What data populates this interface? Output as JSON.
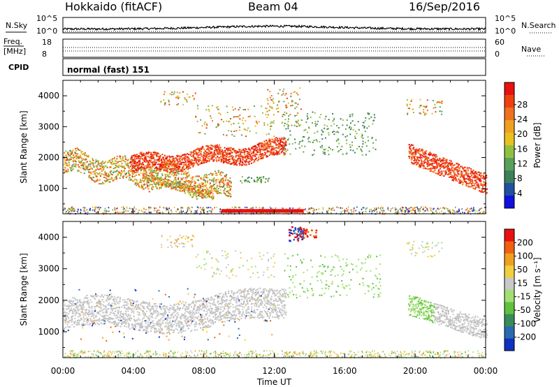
{
  "header": {
    "radar": "Hokkaido (fitACF)",
    "beam": "Beam 04",
    "date": "16/Sep/2016"
  },
  "top_panels": {
    "noise_left_label": "N.Sky",
    "noise_right_label": "N.Search",
    "noise_ticks": [
      "10^5",
      "10^0"
    ],
    "freq_label_1": "Freq.",
    "freq_label_2": "[MHz]",
    "freq_ticks": [
      "18",
      "8"
    ],
    "nave_ticks": [
      "60",
      "0"
    ],
    "nave_label": "Nave",
    "cpid_label": "CPID",
    "cpid_text": "normal (fast) 151"
  },
  "chart_data": [
    {
      "type": "heatmap",
      "name_field": "Power",
      "ylabel": "Slant Range [km]",
      "xlabel": "Time UT",
      "x_ticks": [
        "00:00",
        "04:00",
        "08:00",
        "12:00",
        "16:00",
        "20:00",
        "00:00"
      ],
      "x_range_hours": [
        0,
        24
      ],
      "y_ticks": [
        1000,
        2000,
        3000,
        4000
      ],
      "y_range_km": [
        180,
        4500
      ],
      "colorbar": {
        "label": "Power [dB]",
        "ticks": [
          "4",
          "8",
          "12",
          "16",
          "20",
          "24",
          "28"
        ],
        "colors": [
          "#1010e0",
          "#2050a0",
          "#3d7f5a",
          "#5aa05a",
          "#90c040",
          "#e8c020",
          "#f0a020",
          "#f07020",
          "#f04010",
          "#e81010"
        ]
      },
      "regions": [
        {
          "t": [
            0.0,
            9.5
          ],
          "r": [
            700,
            2300
          ],
          "level": "mixed-green-orange"
        },
        {
          "t": [
            4.0,
            12.5
          ],
          "r": [
            1500,
            2600
          ],
          "level": "strong-red"
        },
        {
          "t": [
            19.5,
            24.0
          ],
          "r": [
            900,
            2600
          ],
          "level": "strong-red"
        },
        {
          "t": [
            12.5,
            18.0
          ],
          "r": [
            2100,
            3600
          ],
          "level": "weak-green"
        },
        {
          "t": [
            9.0,
            13.5
          ],
          "r": [
            200,
            350
          ],
          "level": "strong-red-band"
        }
      ]
    },
    {
      "type": "heatmap",
      "name_field": "Velocity",
      "ylabel": "Slant Range [km]",
      "xlabel": "Time UT",
      "x_ticks": [
        "00:00",
        "04:00",
        "08:00",
        "12:00",
        "16:00",
        "20:00",
        "00:00"
      ],
      "x_range_hours": [
        0,
        24
      ],
      "y_ticks": [
        1000,
        2000,
        3000,
        4000
      ],
      "y_range_km": [
        180,
        4500
      ],
      "colorbar": {
        "label": "Velocity [m s⁻¹]",
        "ticks": [
          "200",
          "100",
          "50",
          "15",
          "-15",
          "-50",
          "-100",
          "-200"
        ],
        "colors": [
          "#1030c0",
          "#2a6ab0",
          "#3a8a5a",
          "#60c040",
          "#a0e070",
          "#c8c8c8",
          "#f0d040",
          "#f0a020",
          "#f06010",
          "#e81010"
        ]
      },
      "regions": [
        {
          "t": [
            0.0,
            12.5
          ],
          "r": [
            700,
            2500
          ],
          "level": "ground-scatter-gray"
        },
        {
          "t": [
            19.5,
            24.0
          ],
          "r": [
            900,
            2300
          ],
          "level": "green-gray"
        },
        {
          "t": [
            12.5,
            14.5
          ],
          "r": [
            3800,
            4300
          ],
          "level": "blue-red"
        }
      ]
    }
  ]
}
